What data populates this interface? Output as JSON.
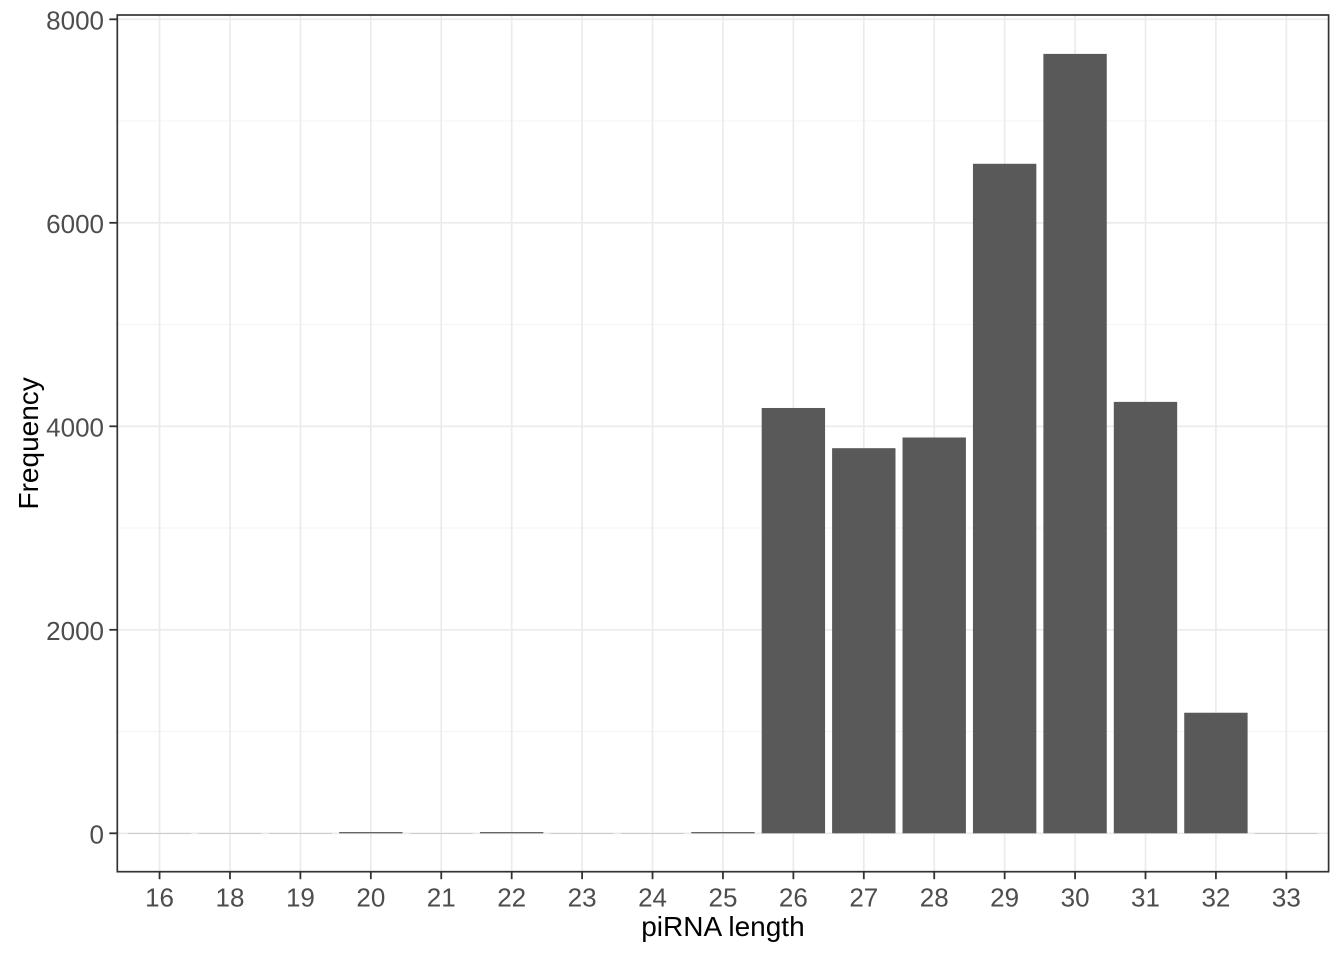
{
  "chart_data": {
    "type": "bar",
    "title": "",
    "xlabel": "piRNA length",
    "ylabel": "Frequency",
    "categories": [
      "16",
      "18",
      "19",
      "20",
      "21",
      "22",
      "23",
      "24",
      "25",
      "26",
      "27",
      "28",
      "29",
      "30",
      "31",
      "32",
      "33"
    ],
    "values": [
      2,
      2,
      2,
      12,
      2,
      12,
      2,
      2,
      12,
      4180,
      3785,
      3890,
      6580,
      7660,
      4240,
      1185,
      2
    ],
    "ylim": [
      0,
      8000
    ],
    "y_major_ticks": [
      0,
      2000,
      4000,
      6000,
      8000
    ],
    "y_tick_labels": [
      "0",
      "2000",
      "4000",
      "6000",
      "8000"
    ],
    "y_minor_ticks": [
      1000,
      3000,
      5000,
      7000
    ],
    "grid": "major-and-minor",
    "legend": "none",
    "bar_width_fraction": 0.9,
    "bar_color": "#595959",
    "colors": {
      "background": "#FFFFFF",
      "panel_border": "#333333",
      "grid_major": "#EBEBEB",
      "grid_minor": "#F3F3F3",
      "tick_mark": "#333333",
      "axis_text": "#4D4D4D",
      "axis_title": "#000000"
    }
  }
}
